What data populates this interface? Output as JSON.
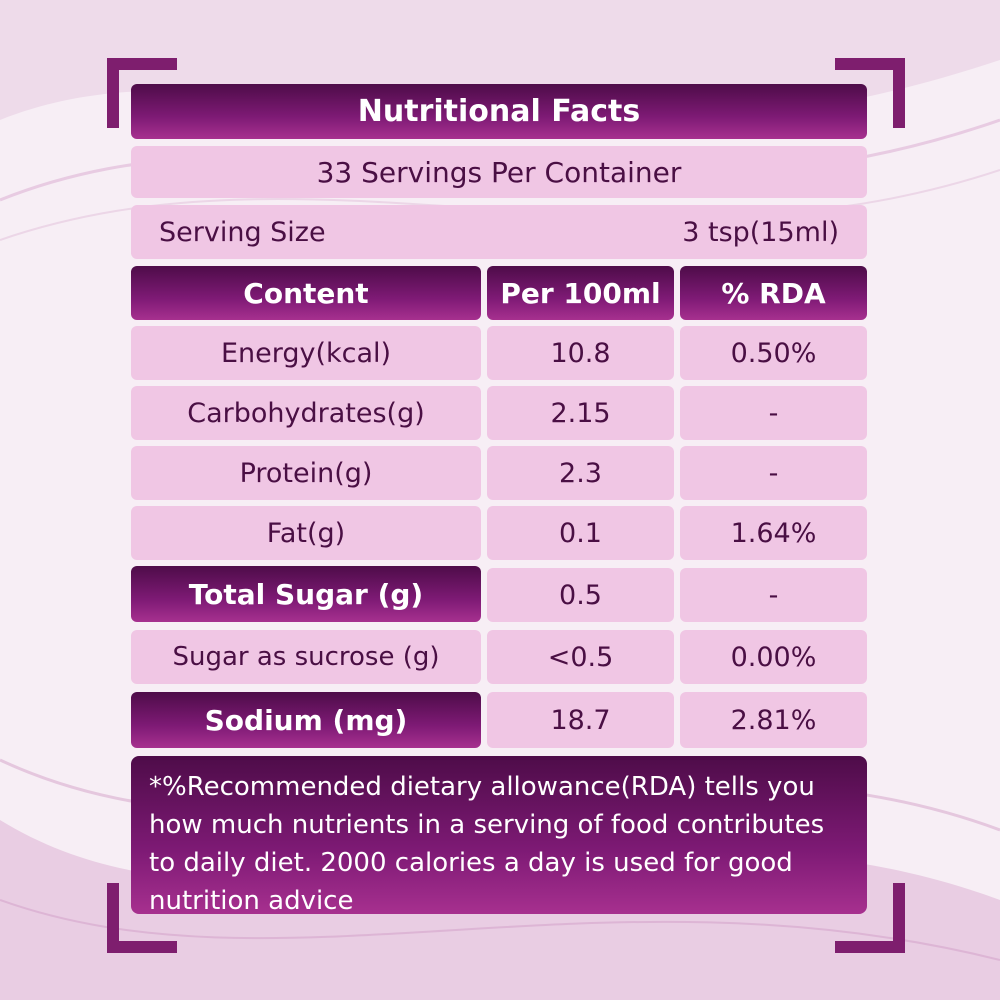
{
  "colors": {
    "dark_purple": "#6b1562",
    "light_pink": "#f0c6e4",
    "text_purple": "#4a0f44"
  },
  "title": "Nutritional Facts",
  "servings": "33 Servings Per Container",
  "serving_size": {
    "label": "Serving Size",
    "value": "3 tsp(15ml)"
  },
  "headers": {
    "content": "Content",
    "per100": "Per 100ml",
    "rda": "% RDA"
  },
  "rows": [
    {
      "name": "Energy(kcal)",
      "per100": "10.8",
      "rda": "0.50%"
    },
    {
      "name": "Carbohydrates(g)",
      "per100": "2.15",
      "rda": "-"
    },
    {
      "name": "Protein(g)",
      "per100": "2.3",
      "rda": "-"
    },
    {
      "name": "Fat(g)",
      "per100": "0.1",
      "rda": "1.64%"
    },
    {
      "name": "Total Sugar (g)",
      "per100": "0.5",
      "rda": "-"
    },
    {
      "name": "Sugar as sucrose (g)",
      "per100": "<0.5",
      "rda": "0.00%"
    },
    {
      "name": "Sodium (mg)",
      "per100": "18.7",
      "rda": "2.81%"
    }
  ],
  "footnote": "*%Recommended dietary allowance(RDA) tells you how much nutrients in a serving of food contributes to daily diet. 2000 calories a day is used for good nutrition advice"
}
